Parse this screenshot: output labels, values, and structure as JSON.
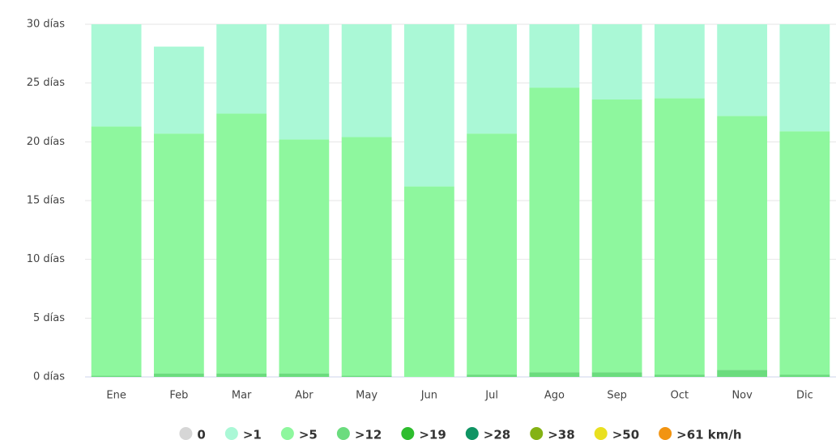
{
  "chart_data": {
    "type": "stacked_bar",
    "categories": [
      "Ene",
      "Feb",
      "Mar",
      "Abr",
      "May",
      "Jun",
      "Jul",
      "Ago",
      "Sep",
      "Oct",
      "Nov",
      "Dic"
    ],
    "series": [
      {
        "name": "0",
        "color": "#d6d6d6",
        "values": [
          0,
          0,
          0,
          0,
          0,
          0,
          0,
          0,
          0,
          0,
          0,
          0
        ]
      },
      {
        "name": ">1",
        "color": "#aaf8d6",
        "values": [
          8.7,
          7.4,
          7.6,
          9.8,
          9.6,
          13.8,
          9.3,
          5.4,
          6.4,
          6.3,
          7.8,
          9.1
        ]
      },
      {
        "name": ">5",
        "color": "#8ef79e",
        "values": [
          21.2,
          20.4,
          22.1,
          19.9,
          20.3,
          16.2,
          20.5,
          24.2,
          23.2,
          23.5,
          21.6,
          20.7
        ]
      },
      {
        "name": ">12",
        "color": "#6bdc7e",
        "values": [
          0.1,
          0.3,
          0.3,
          0.3,
          0.1,
          0,
          0.2,
          0.4,
          0.4,
          0.2,
          0.6,
          0.2
        ]
      },
      {
        "name": ">19",
        "color": "#2ebd2e",
        "values": [
          0,
          0,
          0,
          0,
          0,
          0,
          0,
          0,
          0,
          0,
          0,
          0
        ]
      },
      {
        "name": ">28",
        "color": "#0f9463",
        "values": [
          0,
          0,
          0,
          0,
          0,
          0,
          0,
          0,
          0,
          0,
          0,
          0
        ]
      },
      {
        "name": ">38",
        "color": "#84b214",
        "values": [
          0,
          0,
          0,
          0,
          0,
          0,
          0,
          0,
          0,
          0,
          0,
          0
        ]
      },
      {
        "name": ">50",
        "color": "#e9e020",
        "values": [
          0,
          0,
          0,
          0,
          0,
          0,
          0,
          0,
          0,
          0,
          0,
          0
        ]
      },
      {
        "name": ">61 km/h",
        "color": "#f29411",
        "values": [
          0,
          0,
          0,
          0,
          0,
          0,
          0,
          0,
          0,
          0,
          0,
          0
        ]
      }
    ],
    "ylim": [
      0,
      30
    ],
    "yticks": [
      {
        "value": 0,
        "label": "0 días"
      },
      {
        "value": 5,
        "label": "5 días"
      },
      {
        "value": 10,
        "label": "10 días"
      },
      {
        "value": 15,
        "label": "15 días"
      },
      {
        "value": 20,
        "label": "20 días"
      },
      {
        "value": 25,
        "label": "25 días"
      },
      {
        "value": 30,
        "label": "30 días"
      }
    ],
    "grid": true
  }
}
